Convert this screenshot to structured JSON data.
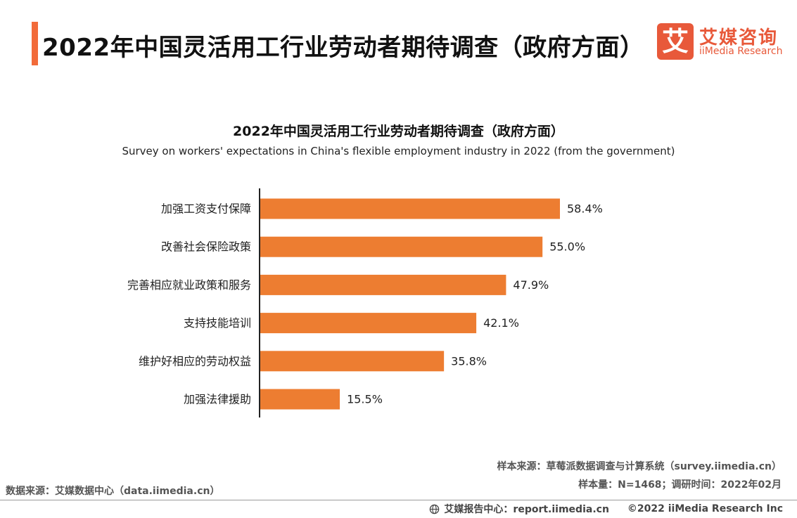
{
  "header": {
    "title": "2022年中国灵活用工行业劳动者期待调查（政府方面）"
  },
  "logo": {
    "mark": "艾",
    "name_cn": "艾媒咨询",
    "name_en": "iiMedia Research"
  },
  "chart_data": {
    "type": "bar",
    "orientation": "horizontal",
    "title": "2022年中国灵活用工行业劳动者期待调查（政府方面）",
    "subtitle": "Survey on workers' expectations in China's flexible employment industry in 2022 (from the government)",
    "categories": [
      "加强工资支付保障",
      "改善社会保险政策",
      "完善相应就业政策和服务",
      "支持技能培训",
      "维护好相应的劳动权益",
      "加强法律援助"
    ],
    "values": [
      58.4,
      55.0,
      47.9,
      42.1,
      35.8,
      15.5
    ],
    "value_labels": [
      "58.4%",
      "55.0%",
      "47.9%",
      "42.1%",
      "35.8%",
      "15.5%"
    ],
    "unit": "%",
    "xlim": [
      0,
      58.4
    ],
    "grid": false,
    "bar_color": "#ed7d31"
  },
  "notes": {
    "sample_source": "样本来源：草莓派数据调查与计算系统（survey.iimedia.cn）",
    "sample_size": "样本量：N=1468；调研时间：2022年02月",
    "data_source": "数据来源：艾媒数据中心（data.iimedia.cn）"
  },
  "footer": {
    "report_center": "艾媒报告中心：report.iimedia.cn",
    "copyright": "©2022  iiMedia Research  Inc"
  },
  "colors": {
    "accent": "#f26b3a",
    "brand": "#e8593a",
    "bar": "#ed7d31"
  }
}
